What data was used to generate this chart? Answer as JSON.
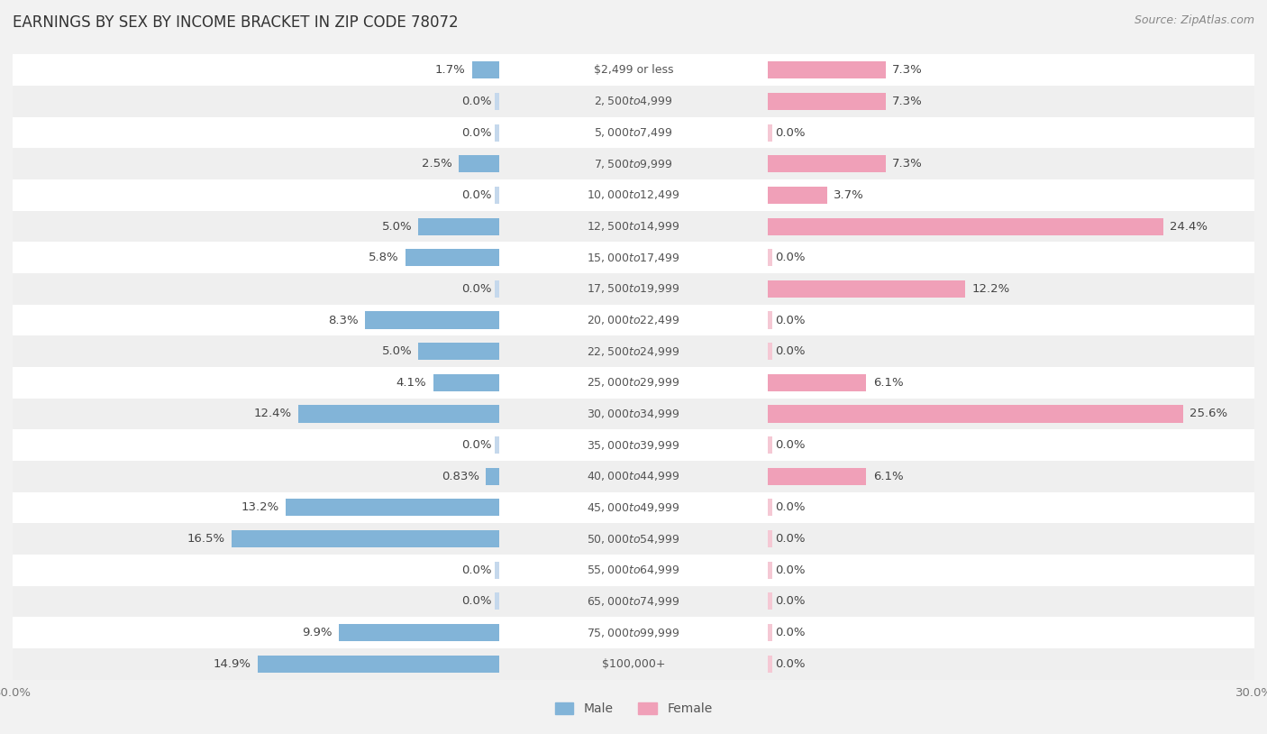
{
  "title": "EARNINGS BY SEX BY INCOME BRACKET IN ZIP CODE 78072",
  "source": "Source: ZipAtlas.com",
  "categories": [
    "$2,499 or less",
    "$2,500 to $4,999",
    "$5,000 to $7,499",
    "$7,500 to $9,999",
    "$10,000 to $12,499",
    "$12,500 to $14,999",
    "$15,000 to $17,499",
    "$17,500 to $19,999",
    "$20,000 to $22,499",
    "$22,500 to $24,999",
    "$25,000 to $29,999",
    "$30,000 to $34,999",
    "$35,000 to $39,999",
    "$40,000 to $44,999",
    "$45,000 to $49,999",
    "$50,000 to $54,999",
    "$55,000 to $64,999",
    "$65,000 to $74,999",
    "$75,000 to $99,999",
    "$100,000+"
  ],
  "male": [
    1.7,
    0.0,
    0.0,
    2.5,
    0.0,
    5.0,
    5.8,
    0.0,
    8.3,
    5.0,
    4.1,
    12.4,
    0.0,
    0.83,
    13.2,
    16.5,
    0.0,
    0.0,
    9.9,
    14.9
  ],
  "female": [
    7.3,
    7.3,
    0.0,
    7.3,
    3.7,
    24.4,
    0.0,
    12.2,
    0.0,
    0.0,
    6.1,
    25.6,
    0.0,
    6.1,
    0.0,
    0.0,
    0.0,
    0.0,
    0.0,
    0.0
  ],
  "male_color": "#82B4D8",
  "female_color": "#F0A0B8",
  "male_light_color": "#C5D8EC",
  "female_light_color": "#F5C8D4",
  "bg_stripe1": "#FFFFFF",
  "bg_stripe2": "#EFEFEF",
  "xlim": 30.0,
  "title_fontsize": 12,
  "source_fontsize": 9,
  "label_fontsize": 9.5,
  "cat_fontsize": 9,
  "bar_height": 0.55,
  "legend_fontsize": 10,
  "value_color": "#444444"
}
